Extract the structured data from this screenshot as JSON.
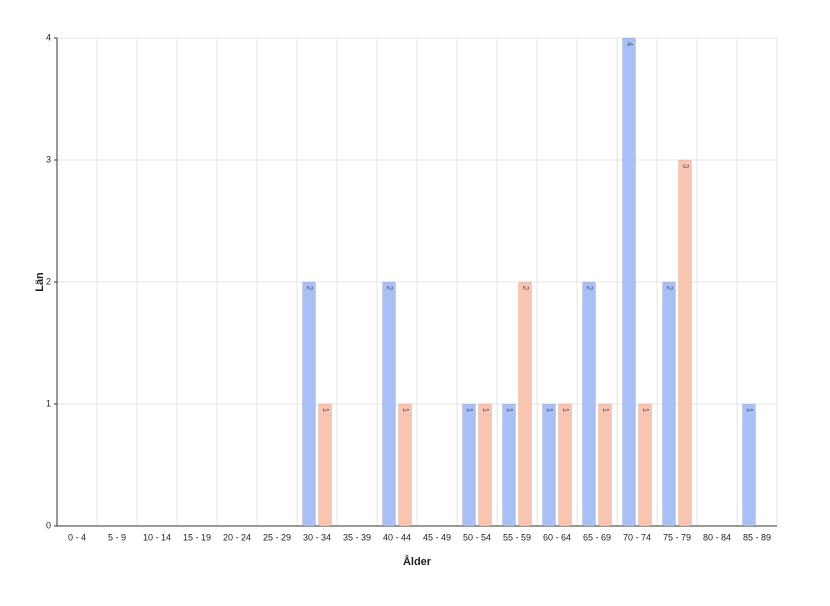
{
  "chart_data": {
    "type": "bar",
    "x_label": "Ålder",
    "y_label": "Län",
    "categories": [
      "0 - 4",
      "5 - 9",
      "10 - 14",
      "15 - 19",
      "20 - 24",
      "25 - 29",
      "30 - 34",
      "35 - 39",
      "40 - 44",
      "45 - 49",
      "50 - 54",
      "55 - 59",
      "60 - 64",
      "65 - 69",
      "70 - 74",
      "75 - 79",
      "80 - 84",
      "85 - 89"
    ],
    "series": [
      {
        "color": "#a9bff5",
        "values": [
          null,
          null,
          null,
          null,
          null,
          null,
          2,
          null,
          2,
          null,
          1,
          1,
          1,
          2,
          4,
          2,
          null,
          1
        ]
      },
      {
        "color": "#f9c4b0",
        "values": [
          null,
          null,
          null,
          null,
          null,
          null,
          1,
          null,
          1,
          null,
          1,
          2,
          1,
          1,
          1,
          3,
          null,
          null
        ]
      }
    ],
    "ylim": [
      0,
      4
    ],
    "yticks": [
      0,
      1,
      2,
      3,
      4
    ],
    "grid": true
  }
}
